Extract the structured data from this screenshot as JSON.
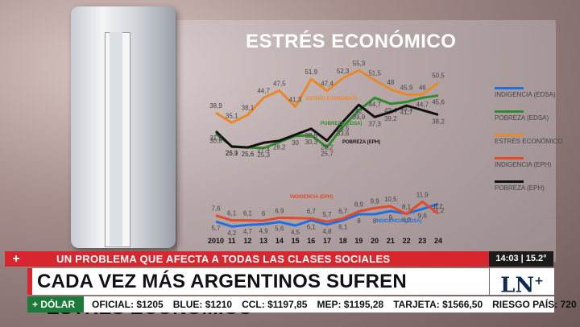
{
  "chart_data": {
    "type": "line",
    "title": "ESTRÉS ECONÓMICO",
    "x": [
      "2010",
      "11",
      "12",
      "13",
      "14",
      "15",
      "16",
      "17",
      "18",
      "19",
      "20",
      "21",
      "22",
      "23",
      "24"
    ],
    "series": [
      {
        "name": "INDIGENCIA (EDSA)",
        "color": "#1f6fe0",
        "values": [
          5.7,
          4.2,
          4.7,
          4.9,
          5.6,
          4.5,
          6.1,
          4.8,
          6.1,
          8.0,
          8.0,
          9.0,
          8.2,
          9.6,
          11.2
        ]
      },
      {
        "name": "POBREZA (EDSA)",
        "color": "#2e8b2e",
        "values": [
          30.8,
          26.1,
          25.6,
          25.3,
          null,
          30.0,
          30.3,
          25.7,
          33.6,
          39.9,
          44.7,
          42.4,
          43.1,
          44.7,
          45.6
        ]
      },
      {
        "name": "ESTRÉS ECONÓMICO",
        "color": "#e8882a",
        "values": [
          38.9,
          35.1,
          38.1,
          44.7,
          47.5,
          41.3,
          51.9,
          47.4,
          52.3,
          55.3,
          51.5,
          48.0,
          45.9,
          46.0,
          50.5
        ]
      },
      {
        "name": "INDIGENCIA (EPH)",
        "color": "#e24a2a",
        "values": [
          7.6,
          6.1,
          6.1,
          6.0,
          6.9,
          null,
          6.7,
          5.7,
          6.7,
          8.9,
          9.9,
          10.5,
          8.1,
          11.9,
          8.2
        ]
      },
      {
        "name": "POBREZA (EPH)",
        "color": "#111111",
        "values": [
          31.8,
          25.9,
          25.6,
          27.4,
          28.2,
          null,
          32.8,
          28.2,
          35.5,
          42.0,
          37.3,
          39.2,
          41.7,
          null,
          38.2
        ]
      }
    ],
    "annotations": [
      "ESTRÉS ECONÓMICO",
      "POBREZA (EDSA)",
      "POBREZA (EPH)",
      "INDIGENCIA (EPH)",
      "INDIGENCIA (EDSA)"
    ]
  },
  "ticker": {
    "plus": "+",
    "kicker": "UN PROBLEMA QUE AFECTA A TODAS LAS CLASES SOCIALES",
    "time": "14:03 | 15.2°",
    "headline": "CADA VEZ MÁS ARGENTINOS SUFREN \"ESTRÉS ECONÓMICO\"",
    "logo": "LN",
    "logo_sup": "+"
  },
  "market": {
    "tag": "+ DÓLAR",
    "items": [
      "OFICIAL: $1205",
      "BLUE: $1210",
      "CCL: $1197,85",
      "MEP: $1195,28",
      "TARJETA: $1566,50",
      "RIESGO PAÍS: 720"
    ]
  }
}
